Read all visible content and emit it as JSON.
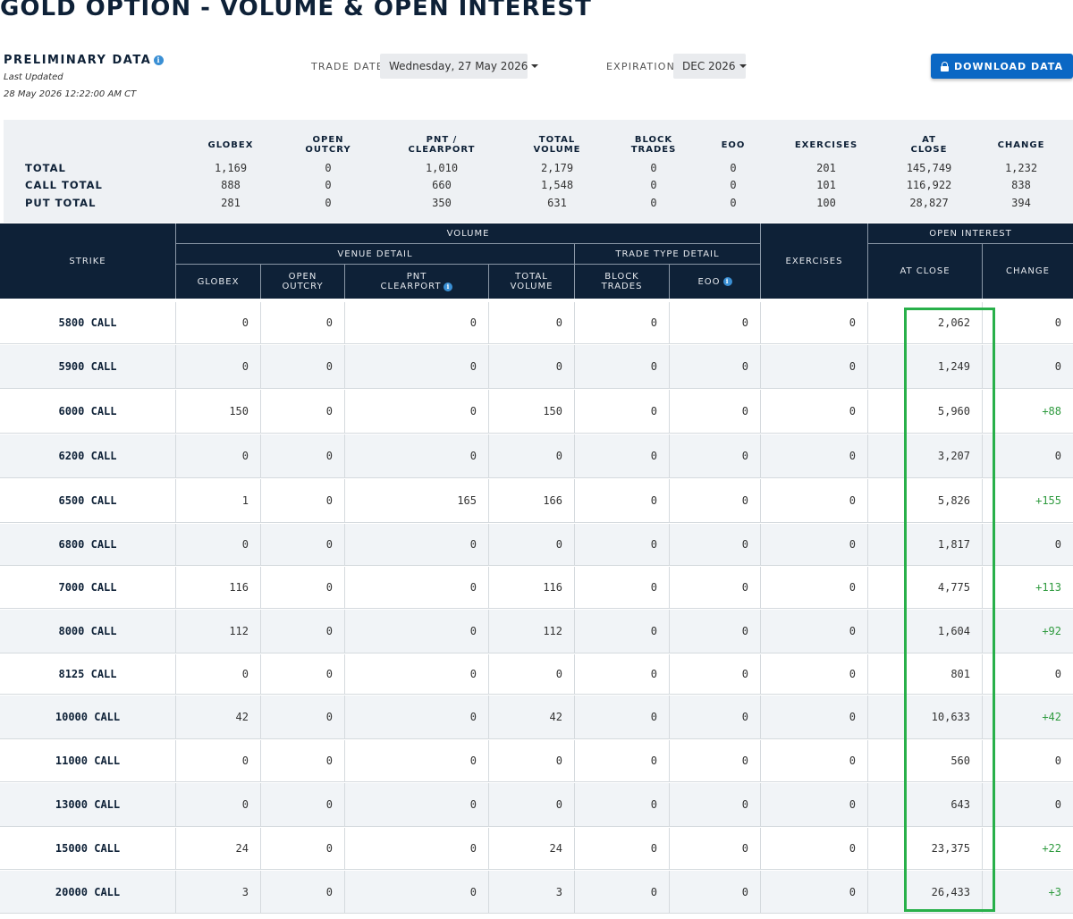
{
  "page": {
    "title": "GOLD OPTION - VOLUME & OPEN INTEREST"
  },
  "status": {
    "preliminary": "PRELIMINARY DATA",
    "last_updated_label": "Last Updated",
    "last_updated_value": "28 May 2026 12:22:00 AM CT"
  },
  "filters": {
    "trade_date_label": "TRADE DATE",
    "trade_date_value": "Wednesday, 27 May 2026",
    "expiration_label": "EXPIRATION",
    "expiration_value": "DEC 2026"
  },
  "download": {
    "label": "DOWNLOAD DATA"
  },
  "summary": {
    "headers": [
      [
        "GLOBEX"
      ],
      [
        "OPEN",
        "OUTCRY"
      ],
      [
        "PNT /",
        "CLEARPORT"
      ],
      [
        "TOTAL",
        "VOLUME"
      ],
      [
        "BLOCK",
        "TRADES"
      ],
      [
        "EOO"
      ],
      [
        "EXERCISES"
      ],
      [
        "AT",
        "CLOSE"
      ],
      [
        "CHANGE"
      ]
    ],
    "rows": [
      {
        "label": "TOTAL",
        "values": [
          "1,169",
          "0",
          "1,010",
          "2,179",
          "0",
          "0",
          "201",
          "145,749",
          "1,232"
        ]
      },
      {
        "label": "CALL TOTAL",
        "values": [
          "888",
          "0",
          "660",
          "1,548",
          "0",
          "0",
          "101",
          "116,922",
          "838"
        ]
      },
      {
        "label": "PUT TOTAL",
        "values": [
          "281",
          "0",
          "350",
          "631",
          "0",
          "0",
          "100",
          "28,827",
          "394"
        ]
      }
    ]
  },
  "table_header": {
    "strike": "STRIKE",
    "volume": "VOLUME",
    "venue_detail": "VENUE DETAIL",
    "trade_type_detail": "TRADE TYPE DETAIL",
    "exercises": "EXERCISES",
    "open_interest": "OPEN INTEREST",
    "globex": "GLOBEX",
    "open_outcry": [
      "OPEN",
      "OUTCRY"
    ],
    "pnt_clearport": [
      "PNT",
      "CLEARPORT"
    ],
    "total_volume": [
      "TOTAL",
      "VOLUME"
    ],
    "block_trades": [
      "BLOCK",
      "TRADES"
    ],
    "eoo": "EOO",
    "at_close": "AT CLOSE",
    "change": "CHANGE"
  },
  "rows": [
    {
      "strike": "5800 CALL",
      "globex": "0",
      "open_outcry": "0",
      "pnt": "0",
      "total": "0",
      "block": "0",
      "eoo": "0",
      "exercises": "0",
      "at_close": "2,062",
      "change": "0"
    },
    {
      "strike": "5900 CALL",
      "globex": "0",
      "open_outcry": "0",
      "pnt": "0",
      "total": "0",
      "block": "0",
      "eoo": "0",
      "exercises": "0",
      "at_close": "1,249",
      "change": "0"
    },
    {
      "strike": "6000 CALL",
      "globex": "150",
      "open_outcry": "0",
      "pnt": "0",
      "total": "150",
      "block": "0",
      "eoo": "0",
      "exercises": "0",
      "at_close": "5,960",
      "change": "+88"
    },
    {
      "strike": "6200 CALL",
      "globex": "0",
      "open_outcry": "0",
      "pnt": "0",
      "total": "0",
      "block": "0",
      "eoo": "0",
      "exercises": "0",
      "at_close": "3,207",
      "change": "0"
    },
    {
      "strike": "6500 CALL",
      "globex": "1",
      "open_outcry": "0",
      "pnt": "165",
      "total": "166",
      "block": "0",
      "eoo": "0",
      "exercises": "0",
      "at_close": "5,826",
      "change": "+155"
    },
    {
      "strike": "6800 CALL",
      "globex": "0",
      "open_outcry": "0",
      "pnt": "0",
      "total": "0",
      "block": "0",
      "eoo": "0",
      "exercises": "0",
      "at_close": "1,817",
      "change": "0"
    },
    {
      "strike": "7000 CALL",
      "globex": "116",
      "open_outcry": "0",
      "pnt": "0",
      "total": "116",
      "block": "0",
      "eoo": "0",
      "exercises": "0",
      "at_close": "4,775",
      "change": "+113"
    },
    {
      "strike": "8000 CALL",
      "globex": "112",
      "open_outcry": "0",
      "pnt": "0",
      "total": "112",
      "block": "0",
      "eoo": "0",
      "exercises": "0",
      "at_close": "1,604",
      "change": "+92"
    },
    {
      "strike": "8125 CALL",
      "globex": "0",
      "open_outcry": "0",
      "pnt": "0",
      "total": "0",
      "block": "0",
      "eoo": "0",
      "exercises": "0",
      "at_close": "801",
      "change": "0"
    },
    {
      "strike": "10000 CALL",
      "globex": "42",
      "open_outcry": "0",
      "pnt": "0",
      "total": "42",
      "block": "0",
      "eoo": "0",
      "exercises": "0",
      "at_close": "10,633",
      "change": "+42"
    },
    {
      "strike": "11000 CALL",
      "globex": "0",
      "open_outcry": "0",
      "pnt": "0",
      "total": "0",
      "block": "0",
      "eoo": "0",
      "exercises": "0",
      "at_close": "560",
      "change": "0"
    },
    {
      "strike": "13000 CALL",
      "globex": "0",
      "open_outcry": "0",
      "pnt": "0",
      "total": "0",
      "block": "0",
      "eoo": "0",
      "exercises": "0",
      "at_close": "643",
      "change": "0"
    },
    {
      "strike": "15000 CALL",
      "globex": "24",
      "open_outcry": "0",
      "pnt": "0",
      "total": "24",
      "block": "0",
      "eoo": "0",
      "exercises": "0",
      "at_close": "23,375",
      "change": "+22"
    },
    {
      "strike": "20000 CALL",
      "globex": "3",
      "open_outcry": "0",
      "pnt": "0",
      "total": "3",
      "block": "0",
      "eoo": "0",
      "exercises": "0",
      "at_close": "26,433",
      "change": "+3"
    }
  ],
  "colors": {
    "navy": "#0e2137",
    "accent_blue": "#0a67c4",
    "positive_green": "#2e9a3e",
    "highlight_green": "#28b04a"
  },
  "icons": {
    "info": "info-icon",
    "lock": "lock-icon",
    "caret": "chevron-down-icon"
  }
}
